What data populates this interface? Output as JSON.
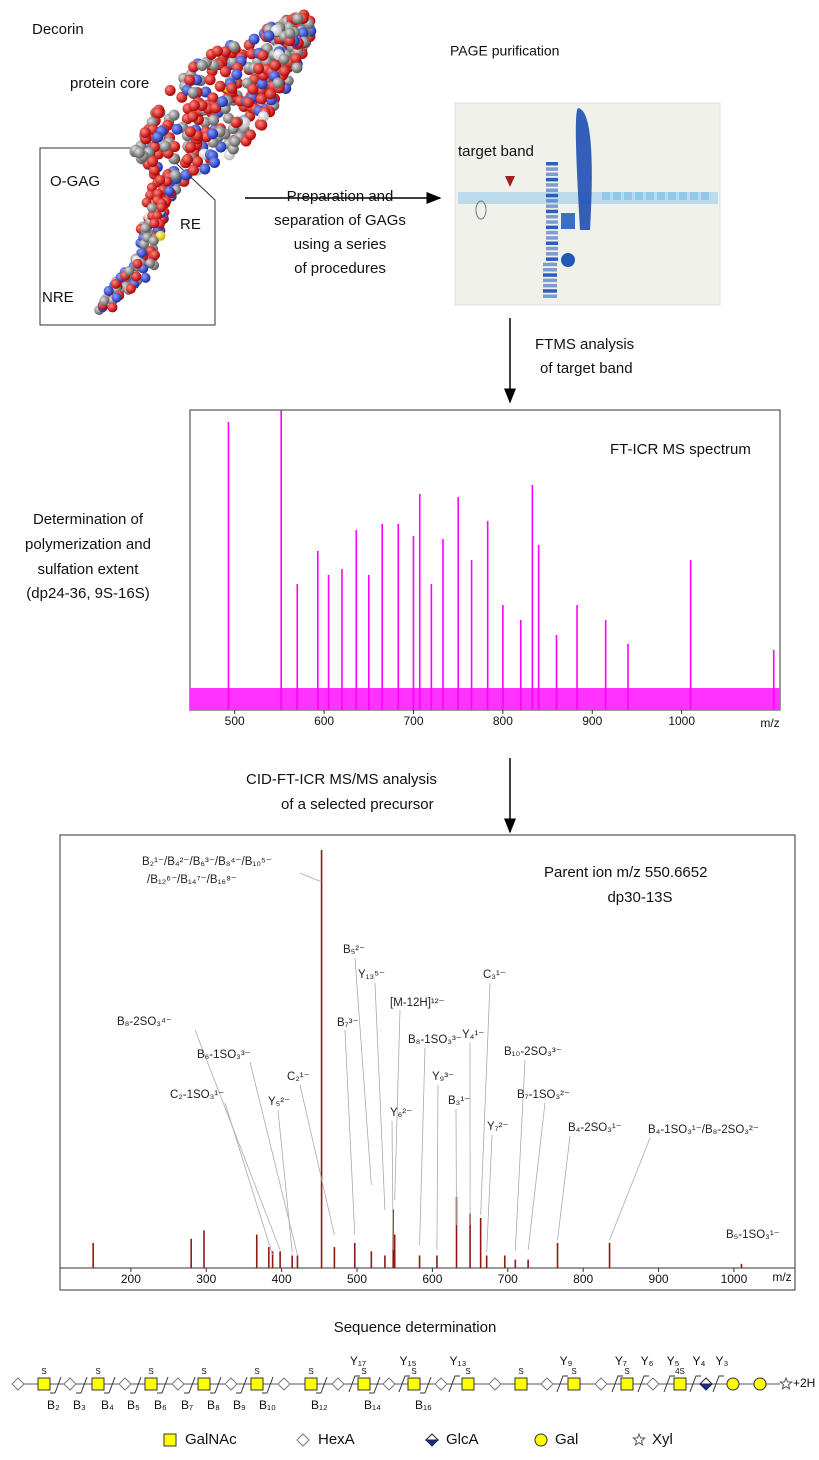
{
  "top": {
    "decorin": "Decorin",
    "protein_core": "protein core",
    "o_gag": "O-GAG",
    "re": "RE",
    "nre": "NRE",
    "page_title": "PAGE purification",
    "target_band": "target band",
    "arrow_text": [
      "Preparation and",
      "separation of GAGs",
      "using a series",
      "of procedures"
    ]
  },
  "ftms_step": [
    "FTMS analysis",
    "of target band"
  ],
  "determination": [
    "Determination of",
    "polymerization and",
    "sulfation extent",
    "(dp24-36, 9S-16S)"
  ],
  "ms_spectrum": {
    "type": "spectrum",
    "title": "FT-ICR MS spectrum",
    "x_label": "m/z",
    "color": "#ff00ff",
    "xlim": [
      450,
      1110
    ],
    "ylim": [
      0,
      100
    ],
    "xticks": [
      500,
      600,
      700,
      800,
      900,
      1000
    ],
    "x": [
      493,
      552,
      570,
      593,
      605,
      620,
      636,
      650,
      665,
      683,
      700,
      707,
      720,
      733,
      750,
      765,
      783,
      800,
      820,
      833,
      840,
      860,
      883,
      915,
      940,
      1010,
      1103
    ],
    "values": [
      96,
      100,
      42,
      53,
      45,
      47,
      60,
      45,
      62,
      62,
      58,
      72,
      42,
      57,
      71,
      50,
      63,
      35,
      30,
      75,
      55,
      25,
      35,
      30,
      22,
      50,
      20
    ]
  },
  "cid_step": [
    "CID-FT-ICR MS/MS analysis",
    "of a selected precursor"
  ],
  "msms_spectrum": {
    "type": "spectrum",
    "x_label": "m/z",
    "color": "#8b1a10",
    "annotation": [
      "Parent ion m/z 550.6652",
      "dp30-13S"
    ],
    "xlim": [
      106,
      1081
    ],
    "ylim": [
      0,
      100
    ],
    "xticks": [
      200,
      300,
      400,
      500,
      600,
      700,
      800,
      900,
      1000
    ],
    "x": [
      150,
      280,
      297,
      367,
      383,
      388,
      398,
      414,
      421,
      453,
      470,
      497,
      519,
      537,
      548,
      550,
      583,
      606,
      632,
      650,
      664,
      672,
      696,
      710,
      727,
      766,
      835,
      1010
    ],
    "values": [
      6,
      7,
      9,
      8,
      5,
      4,
      4,
      3,
      3,
      100,
      5,
      6,
      4,
      3,
      14,
      8,
      3,
      3,
      17,
      13,
      12,
      3,
      3,
      2,
      2,
      6,
      6,
      1
    ],
    "peak_labels": [
      {
        "label": "B₂¹⁻/B₄²⁻/B₆³⁻/B₈⁴⁻/B₁₀⁵⁻",
        "x": 453
      },
      {
        "label": "/B₁₂⁶⁻/B₁₄⁷⁻/B₁₆⁸⁻",
        "x": 453
      },
      {
        "label": "B₅²⁻",
        "x": 519
      },
      {
        "label": "Y₁₃⁵⁻",
        "x": 537
      },
      {
        "label": "[M-12H]¹²⁻",
        "x": 550
      },
      {
        "label": "C₃¹⁻",
        "x": 664
      },
      {
        "label": "B₇³⁻",
        "x": 497
      },
      {
        "label": "B₈-1SO₃³⁻",
        "x": 583
      },
      {
        "label": "Y₄¹⁻",
        "x": 650
      },
      {
        "label": "B₁₀-2SO₃³⁻",
        "x": 710
      },
      {
        "label": "B₈-2SO₃⁴⁻",
        "x": 398
      },
      {
        "label": "B₆-1SO₃³⁻",
        "x": 421
      },
      {
        "label": "C₂¹⁻",
        "x": 470
      },
      {
        "label": "Y₉³⁻",
        "x": 606
      },
      {
        "label": "B₇-1SO₃²⁻",
        "x": 727
      },
      {
        "label": "C₂-1SO₃¹⁻",
        "x": 388
      },
      {
        "label": "Y₅²⁻",
        "x": 414
      },
      {
        "label": "B₃¹⁻",
        "x": 632
      },
      {
        "label": "Y₆²⁻",
        "x": 548
      },
      {
        "label": "Y₇²⁻",
        "x": 672
      },
      {
        "label": "B₄-2SO₃¹⁻",
        "x": 766
      },
      {
        "label": "B₄-1SO₃¹⁻/B₈-2SO₃²⁻",
        "x": 835
      },
      {
        "label": "B₅-1SO₃¹⁻",
        "x": 1010
      }
    ]
  },
  "sequence": {
    "title": "Sequence determination",
    "sulfation": [
      "S",
      "S",
      "S",
      "S",
      "S",
      "S",
      "S",
      "S",
      "S",
      "S",
      "S",
      "S",
      "4S"
    ],
    "y_ions": [
      "Y₁₇",
      "Y₁₅",
      "Y₁₃",
      "Y₉",
      "Y₇",
      "Y₆",
      "Y₅",
      "Y₄",
      "Y₃"
    ],
    "b_ions": [
      "B₂",
      "B₃",
      "B₄",
      "B₅",
      "B₆",
      "B₇",
      "B₈",
      "B₉",
      "B₁₀",
      "B₁₂",
      "B₁₄",
      "B₁₆"
    ],
    "reducing_end": "+2H",
    "legend": [
      "GalNAc",
      "HexA",
      "GlcA",
      "Gal",
      "Xyl"
    ]
  }
}
